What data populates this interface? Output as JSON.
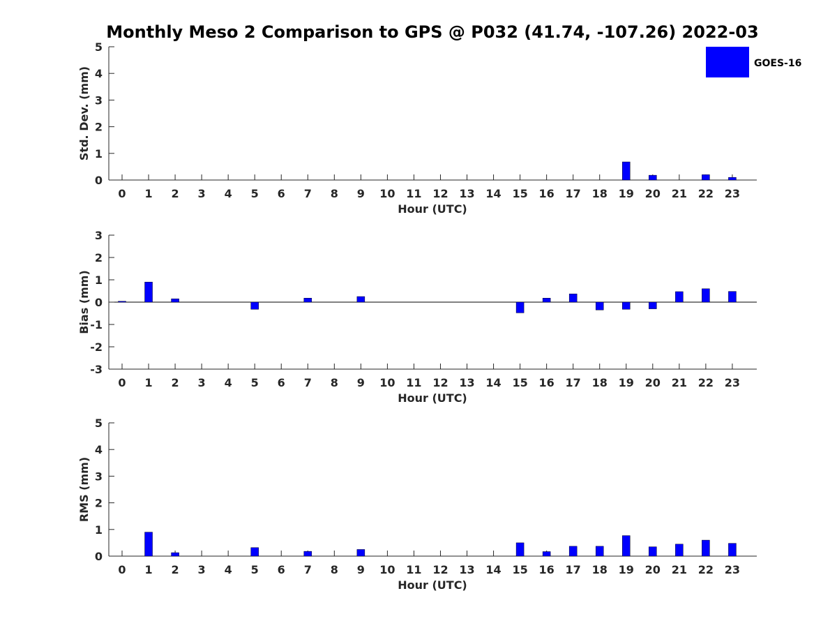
{
  "figure": {
    "title": "Monthly Meso 2 Comparison to GPS @ P032 (41.74, -107.26) 2022-03",
    "legend": {
      "label": "GOES-16",
      "color": "#0000FF",
      "position": "top-right"
    }
  },
  "chart_data": [
    {
      "type": "bar",
      "xlabel": "Hour (UTC)",
      "ylabel": "Std. Dev. (mm)",
      "ylim": [
        0,
        5
      ],
      "yticks": [
        0,
        1,
        2,
        3,
        4,
        5
      ],
      "categories": [
        0,
        1,
        2,
        3,
        4,
        5,
        6,
        7,
        8,
        9,
        10,
        11,
        12,
        13,
        14,
        15,
        16,
        17,
        18,
        19,
        20,
        21,
        22,
        23
      ],
      "series": [
        {
          "name": "GOES-16",
          "color": "#0000FF",
          "values": [
            0,
            0,
            0,
            0,
            0,
            0,
            0,
            0,
            0,
            0,
            0,
            0,
            0,
            0,
            0,
            0,
            0,
            0,
            0,
            0.68,
            0.18,
            0,
            0.2,
            0.1
          ]
        }
      ]
    },
    {
      "type": "bar",
      "xlabel": "Hour (UTC)",
      "ylabel": "Bias (mm)",
      "ylim": [
        -3,
        3
      ],
      "yticks": [
        -3,
        -2,
        -1,
        0,
        1,
        2,
        3
      ],
      "categories": [
        0,
        1,
        2,
        3,
        4,
        5,
        6,
        7,
        8,
        9,
        10,
        11,
        12,
        13,
        14,
        15,
        16,
        17,
        18,
        19,
        20,
        21,
        22,
        23
      ],
      "series": [
        {
          "name": "GOES-16",
          "color": "#0000FF",
          "values": [
            0.04,
            0.9,
            0.15,
            0,
            0,
            -0.32,
            0,
            0.18,
            0,
            0.25,
            0,
            0,
            0,
            0,
            0,
            -0.48,
            0.18,
            0.37,
            -0.35,
            -0.32,
            -0.3,
            0.47,
            0.6,
            0.48
          ]
        }
      ]
    },
    {
      "type": "bar",
      "xlabel": "Hour (UTC)",
      "ylabel": "RMS (mm)",
      "ylim": [
        0,
        5
      ],
      "yticks": [
        0,
        1,
        2,
        3,
        4,
        5
      ],
      "categories": [
        0,
        1,
        2,
        3,
        4,
        5,
        6,
        7,
        8,
        9,
        10,
        11,
        12,
        13,
        14,
        15,
        16,
        17,
        18,
        19,
        20,
        21,
        22,
        23
      ],
      "series": [
        {
          "name": "GOES-16",
          "color": "#0000FF",
          "values": [
            0,
            0.9,
            0.13,
            0,
            0,
            0.32,
            0,
            0.18,
            0,
            0.25,
            0,
            0,
            0,
            0,
            0,
            0.5,
            0.17,
            0.37,
            0.37,
            0.77,
            0.35,
            0.45,
            0.6,
            0.48
          ]
        }
      ]
    }
  ]
}
